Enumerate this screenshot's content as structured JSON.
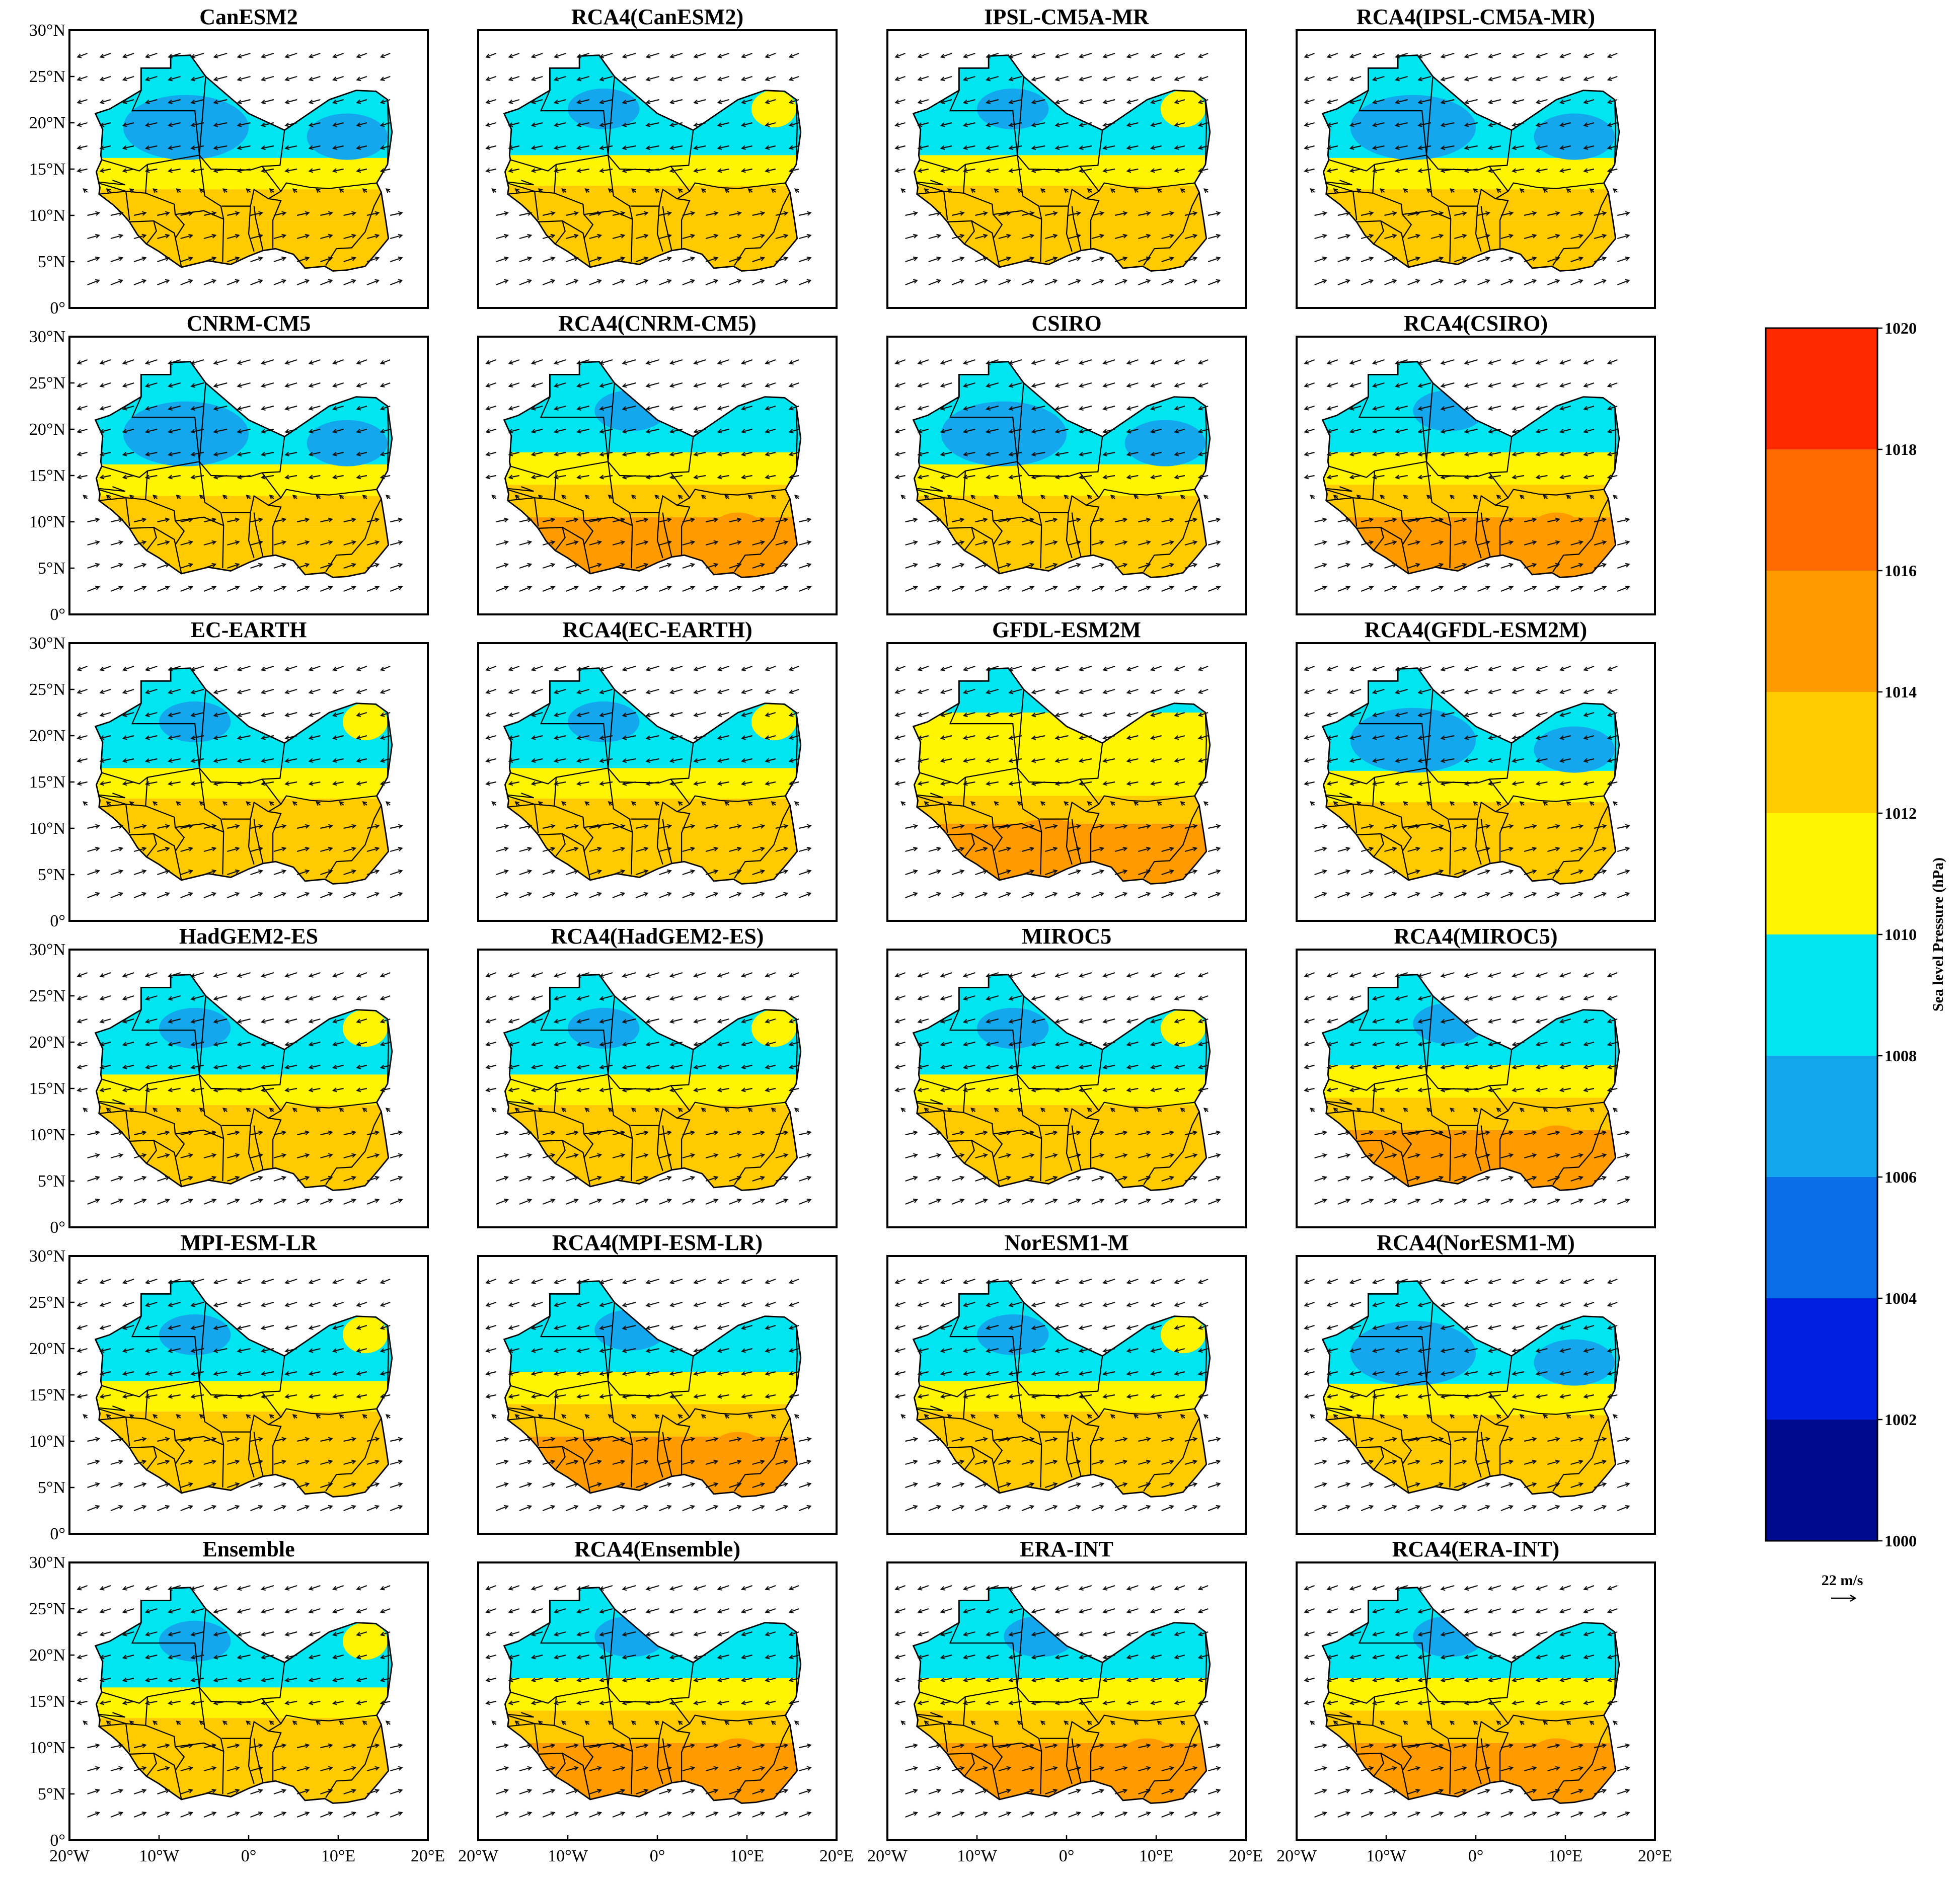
{
  "panels": [
    {
      "title": "CanESM2",
      "field": "cold"
    },
    {
      "title": "RCA4(CanESM2)",
      "field": "mid"
    },
    {
      "title": "IPSL-CM5A-MR",
      "field": "mid"
    },
    {
      "title": "RCA4(IPSL-CM5A-MR)",
      "field": "cold"
    },
    {
      "title": "CNRM-CM5",
      "field": "cold"
    },
    {
      "title": "RCA4(CNRM-CM5)",
      "field": "warm"
    },
    {
      "title": "CSIRO",
      "field": "cold"
    },
    {
      "title": "RCA4(CSIRO)",
      "field": "warm"
    },
    {
      "title": "EC-EARTH",
      "field": "mid"
    },
    {
      "title": "RCA4(EC-EARTH)",
      "field": "mid"
    },
    {
      "title": "GFDL-ESM2M",
      "field": "hot"
    },
    {
      "title": "RCA4(GFDL-ESM2M)",
      "field": "cold"
    },
    {
      "title": "HadGEM2-ES",
      "field": "mid"
    },
    {
      "title": "RCA4(HadGEM2-ES)",
      "field": "mid"
    },
    {
      "title": "MIROC5",
      "field": "mid"
    },
    {
      "title": "RCA4(MIROC5)",
      "field": "warm"
    },
    {
      "title": "MPI-ESM-LR",
      "field": "mid"
    },
    {
      "title": "RCA4(MPI-ESM-LR)",
      "field": "warm"
    },
    {
      "title": "NorESM1-M",
      "field": "mid"
    },
    {
      "title": "RCA4(NorESM1-M)",
      "field": "cold"
    },
    {
      "title": "Ensemble",
      "field": "mid"
    },
    {
      "title": "RCA4(Ensemble)",
      "field": "warm"
    },
    {
      "title": "ERA-INT",
      "field": "warm"
    },
    {
      "title": "RCA4(ERA-INT)",
      "field": "warm"
    }
  ],
  "axes": {
    "lat_ticks": [
      "0°",
      "5°N",
      "10°N",
      "15°N",
      "20°N",
      "25°N",
      "30°N"
    ],
    "lon_ticks": [
      "20°W",
      "10°W",
      "0°",
      "10°E",
      "20°E"
    ]
  },
  "colorbar": {
    "label": "Sea level Pressure (hPa)",
    "levels": [
      1000,
      1002,
      1004,
      1006,
      1008,
      1010,
      1012,
      1014,
      1016,
      1018,
      1020
    ],
    "colors": [
      "#000a8f",
      "#001fe0",
      "#0a6ee8",
      "#14a7ee",
      "#00e5f0",
      "#fff500",
      "#ffca00",
      "#ff9a00",
      "#ff6a00",
      "#ff2a00"
    ]
  },
  "reference_vector": {
    "label": "22 m/s"
  },
  "chart_data": {
    "type": "heatmap",
    "variable": "Sea level Pressure (hPa)",
    "lon_range": [
      -20,
      20
    ],
    "lat_range": [
      0,
      30
    ],
    "color_levels": [
      1000,
      1002,
      1004,
      1006,
      1008,
      1010,
      1012,
      1014,
      1016,
      1018,
      1020
    ],
    "panels": [
      "CanESM2",
      "RCA4(CanESM2)",
      "IPSL-CM5A-MR",
      "RCA4(IPSL-CM5A-MR)",
      "CNRM-CM5",
      "RCA4(CNRM-CM5)",
      "CSIRO",
      "RCA4(CSIRO)",
      "EC-EARTH",
      "RCA4(EC-EARTH)",
      "GFDL-ESM2M",
      "RCA4(GFDL-ESM2M)",
      "HadGEM2-ES",
      "RCA4(HadGEM2-ES)",
      "MIROC5",
      "RCA4(MIROC5)",
      "MPI-ESM-LR",
      "RCA4(MPI-ESM-LR)",
      "NorESM1-M",
      "RCA4(NorESM1-M)",
      "Ensemble",
      "RCA4(Ensemble)",
      "ERA-INT",
      "RCA4(ERA-INT)"
    ],
    "vector_reference": "22 m/s"
  }
}
